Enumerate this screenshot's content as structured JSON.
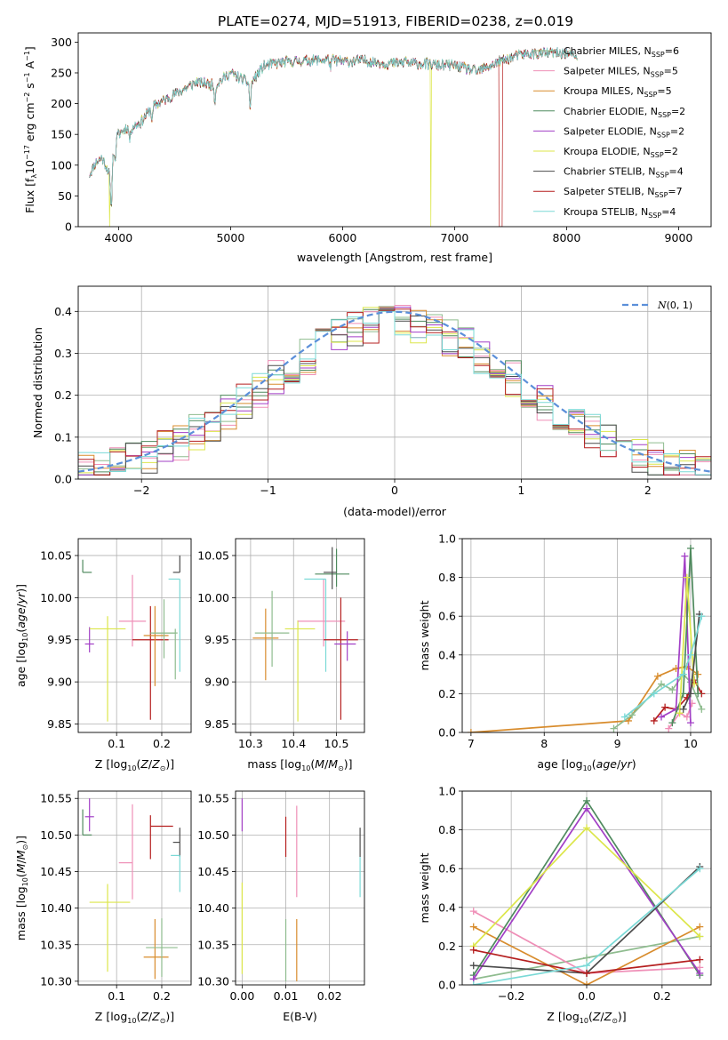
{
  "title": "PLATE=0274, MJD=51913, FIBERID=0238, z=0.019",
  "series": [
    {
      "name": "Chabrier MILES",
      "n": "6",
      "color": "#8fbc8f"
    },
    {
      "name": "Salpeter MILES",
      "n": "5",
      "color": "#ef8fb7"
    },
    {
      "name": "Kroupa MILES",
      "n": "5",
      "color": "#d88c2d"
    },
    {
      "name": "Chabrier ELODIE",
      "n": "2",
      "color": "#4f8a5e"
    },
    {
      "name": "Salpeter ELODIE",
      "n": "2",
      "color": "#a23fc6"
    },
    {
      "name": "Kroupa ELODIE",
      "n": "2",
      "color": "#dce64a"
    },
    {
      "name": "Chabrier STELIB",
      "n": "4",
      "color": "#4c4c4c"
    },
    {
      "name": "Salpeter STELIB",
      "n": "7",
      "color": "#b51f1f"
    },
    {
      "name": "Kroupa STELIB",
      "n": "4",
      "color": "#7ad9d6"
    }
  ],
  "chart_data": [
    {
      "id": "spectrum",
      "type": "line",
      "xlabel": "wavelength [Angstrom, rest frame]",
      "ylabel": "Flux [f",
      "xlim": [
        3640,
        9290
      ],
      "ylim": [
        0,
        315
      ],
      "xticks": [
        4000,
        5000,
        6000,
        7000,
        8000,
        9000
      ],
      "yticks": [
        0,
        50,
        100,
        150,
        200,
        250,
        300
      ],
      "knots": {
        "x": [
          3740,
          3800,
          3850,
          3900,
          3935,
          3960,
          4000,
          4060,
          4100,
          4200,
          4300,
          4500,
          4700,
          4861,
          5000,
          5175,
          5300,
          5500,
          5700,
          5893,
          6000,
          6200,
          6400,
          6563,
          6700,
          6900,
          7000,
          7200,
          7400,
          7600,
          7800,
          8000,
          8100
        ],
        "y": [
          85,
          105,
          112,
          95,
          75,
          140,
          150,
          160,
          160,
          170,
          195,
          215,
          235,
          230,
          250,
          232,
          262,
          268,
          270,
          272,
          268,
          270,
          265,
          266,
          265,
          262,
          262,
          252,
          268,
          280,
          282,
          282,
          276
        ]
      },
      "drops": [
        {
          "series": "Kroupa ELODIE",
          "x": [
            3920,
            6790
          ]
        },
        {
          "series": "Salpeter STELIB",
          "x": [
            7420
          ]
        }
      ]
    },
    {
      "id": "residuals",
      "type": "histogram",
      "xlabel": "(data-model)/error",
      "ylabel": "Normed distribution",
      "xlim": [
        -2.5,
        2.5
      ],
      "ylim": [
        0,
        0.46
      ],
      "xticks": [
        -2,
        -1,
        0,
        1,
        2
      ],
      "yticks": [
        0.0,
        0.1,
        0.2,
        0.3,
        0.4
      ],
      "bin_width": 0.125,
      "legend": "$\\mathcal{N}(0,1)$",
      "normal_mean": 0,
      "normal_sigma": 1
    },
    {
      "id": "age_Z",
      "type": "errorbar",
      "xlabel": "Z [log",
      "ylabel": "age  [log",
      "xlim": [
        0.015,
        0.265
      ],
      "ylim": [
        9.84,
        10.07
      ],
      "xticks": [
        0.1,
        0.2
      ],
      "yticks": [
        9.85,
        9.9,
        9.95,
        10.0,
        10.05
      ],
      "points": [
        {
          "x": 0.025,
          "xe": [
            0,
            0.02
          ],
          "y": 10.03,
          "ye": [
            0,
            0.015
          ],
          "s": 3
        },
        {
          "x": 0.04,
          "xe": [
            0.01,
            0.01
          ],
          "y": 9.945,
          "ye": [
            0.01,
            0.02
          ],
          "s": 4
        },
        {
          "x": 0.08,
          "xe": [
            0.04,
            0.04
          ],
          "y": 9.963,
          "ye": [
            0.11,
            0.015
          ],
          "s": 5
        },
        {
          "x": 0.135,
          "xe": [
            0.03,
            0.03
          ],
          "y": 9.972,
          "ye": [
            0.03,
            0.055
          ],
          "s": 1
        },
        {
          "x": 0.175,
          "xe": [
            0.04,
            0.04
          ],
          "y": 9.95,
          "ye": [
            0.095,
            0.04
          ],
          "s": 7
        },
        {
          "x": 0.185,
          "xe": [
            0.025,
            0.03
          ],
          "y": 9.955,
          "ye": [
            0.06,
            0.035
          ],
          "s": 2
        },
        {
          "x": 0.205,
          "xe": [
            0.03,
            0.03
          ],
          "y": 9.958,
          "ye": [
            0.03,
            0.04
          ],
          "s": 0
        },
        {
          "x": 0.24,
          "xe": [
            0.015,
            0.0
          ],
          "y": 10.03,
          "ye": [
            0,
            0.02
          ],
          "s": 6
        },
        {
          "x": 0.24,
          "xe": [
            0.025,
            0.0
          ],
          "y": 10.022,
          "ye": [
            0.11,
            0.0
          ],
          "s": 8
        },
        {
          "x": 0.23,
          "xe": [
            0.05,
            0.0
          ],
          "y": 9.958,
          "ye": [
            0.055,
            0.005
          ],
          "s": 0
        }
      ]
    },
    {
      "id": "age_mass",
      "type": "errorbar",
      "xlabel": "mass [log",
      "ylabel": "",
      "xlim": [
        10.265,
        10.565
      ],
      "ylim": [
        9.84,
        10.07
      ],
      "xticks": [
        10.3,
        10.4,
        10.5
      ],
      "yticks": [
        9.85,
        9.9,
        9.95,
        10.0,
        10.05
      ],
      "points": [
        {
          "x": 10.335,
          "xe": [
            0.03,
            0.03
          ],
          "y": 9.952,
          "ye": [
            0.05,
            0.035
          ],
          "s": 2
        },
        {
          "x": 10.35,
          "xe": [
            0.04,
            0.04
          ],
          "y": 9.958,
          "ye": [
            0.04,
            0.05
          ],
          "s": 0
        },
        {
          "x": 10.41,
          "xe": [
            0.03,
            0.04
          ],
          "y": 9.963,
          "ye": [
            0.11,
            0.01
          ],
          "s": 5
        },
        {
          "x": 10.47,
          "xe": [
            0.06,
            0.05
          ],
          "y": 9.972,
          "ye": [
            0.03,
            0.05
          ],
          "s": 1
        },
        {
          "x": 10.475,
          "xe": [
            0.05,
            0.0
          ],
          "y": 10.022,
          "ye": [
            0.11,
            0.0
          ],
          "s": 8
        },
        {
          "x": 10.51,
          "xe": [
            0.04,
            0.04
          ],
          "y": 9.95,
          "ye": [
            0.095,
            0.05
          ],
          "s": 7
        },
        {
          "x": 10.525,
          "xe": [
            0.03,
            0.02
          ],
          "y": 9.945,
          "ye": [
            0.02,
            0.015
          ],
          "s": 4
        },
        {
          "x": 10.5,
          "xe": [
            0.05,
            0.03
          ],
          "y": 10.028,
          "ye": [
            0.015,
            0.03
          ],
          "s": 3
        },
        {
          "x": 10.49,
          "xe": [
            0.02,
            0.01
          ],
          "y": 10.03,
          "ye": [
            0.02,
            0.03
          ],
          "s": 6
        }
      ]
    },
    {
      "id": "weight_age",
      "type": "line",
      "xlabel": "age  [log",
      "ylabel": "mass weight",
      "xlim": [
        6.88,
        10.28
      ],
      "ylim": [
        0,
        1.0
      ],
      "xticks": [
        7,
        8,
        9,
        10
      ],
      "yticks": [
        0.0,
        0.2,
        0.4,
        0.6,
        0.8,
        1.0
      ],
      "lines": [
        {
          "s": 2,
          "x": [
            7.0,
            9.15,
            9.55,
            9.8,
            9.95,
            10.1
          ],
          "y": [
            0.0,
            0.06,
            0.29,
            0.33,
            0.34,
            0.3
          ]
        },
        {
          "s": 0,
          "x": [
            8.95,
            9.2,
            9.6,
            9.75,
            9.9,
            10.0,
            10.15
          ],
          "y": [
            0.02,
            0.09,
            0.25,
            0.22,
            0.3,
            0.26,
            0.12
          ]
        },
        {
          "s": 7,
          "x": [
            9.5,
            9.65,
            9.8,
            9.95,
            10.05,
            10.15
          ],
          "y": [
            0.06,
            0.13,
            0.12,
            0.18,
            0.27,
            0.2
          ]
        },
        {
          "s": 1,
          "x": [
            9.7,
            9.85,
            9.95,
            10.02
          ],
          "y": [
            0.02,
            0.1,
            0.08,
            0.15
          ]
        },
        {
          "s": 4,
          "x": [
            9.6,
            9.8,
            9.92,
            10.0
          ],
          "y": [
            0.08,
            0.12,
            0.91,
            0.05
          ]
        },
        {
          "s": 3,
          "x": [
            9.75,
            9.9,
            10.0,
            10.1
          ],
          "y": [
            0.05,
            0.2,
            0.95,
            0.2
          ]
        },
        {
          "s": 5,
          "x": [
            9.85,
            9.95,
            10.05
          ],
          "y": [
            0.1,
            0.8,
            0.25
          ]
        },
        {
          "s": 6,
          "x": [
            9.9,
            10.0,
            10.12
          ],
          "y": [
            0.12,
            0.2,
            0.61
          ]
        },
        {
          "s": 8,
          "x": [
            9.1,
            9.5,
            9.9,
            10.0,
            10.15
          ],
          "y": [
            0.08,
            0.2,
            0.3,
            0.4,
            0.6
          ]
        }
      ]
    },
    {
      "id": "mass_Z",
      "type": "errorbar",
      "xlabel": "Z [log",
      "ylabel": "mass [log",
      "xlim": [
        0.015,
        0.265
      ],
      "ylim": [
        10.295,
        10.56
      ],
      "xticks": [
        0.1,
        0.2
      ],
      "yticks": [
        10.3,
        10.35,
        10.4,
        10.45,
        10.5,
        10.55
      ],
      "points": [
        {
          "x": 0.025,
          "xe": [
            0,
            0.02
          ],
          "y": 10.5,
          "ye": [
            0,
            0.035
          ],
          "s": 3
        },
        {
          "x": 0.04,
          "xe": [
            0.01,
            0.01
          ],
          "y": 10.525,
          "ye": [
            0.02,
            0.025
          ],
          "s": 4
        },
        {
          "x": 0.08,
          "xe": [
            0.04,
            0.05
          ],
          "y": 10.408,
          "ye": [
            0.095,
            0.025
          ],
          "s": 5
        },
        {
          "x": 0.135,
          "xe": [
            0.03,
            0.0
          ],
          "y": 10.462,
          "ye": [
            0.05,
            0.08
          ],
          "s": 1
        },
        {
          "x": 0.175,
          "xe": [
            0.0,
            0.05
          ],
          "y": 10.512,
          "ye": [
            0.045,
            0.015
          ],
          "s": 7
        },
        {
          "x": 0.185,
          "xe": [
            0.025,
            0.03
          ],
          "y": 10.333,
          "ye": [
            0.03,
            0.052
          ],
          "s": 2
        },
        {
          "x": 0.2,
          "xe": [
            0.035,
            0.035
          ],
          "y": 10.346,
          "ye": [
            0.04,
            0.04
          ],
          "s": 0
        },
        {
          "x": 0.24,
          "xe": [
            0.015,
            0.0
          ],
          "y": 10.49,
          "ye": [
            0.02,
            0.02
          ],
          "s": 6
        },
        {
          "x": 0.24,
          "xe": [
            0.02,
            0.0
          ],
          "y": 10.472,
          "ye": [
            0.05,
            0.0
          ],
          "s": 8
        }
      ]
    },
    {
      "id": "mass_EBV",
      "type": "errorbar",
      "xlabel": "E(B-V)",
      "ylabel": "",
      "xlim": [
        -0.0015,
        0.028
      ],
      "ylim": [
        10.295,
        10.56
      ],
      "xticks": [
        0.0,
        0.01,
        0.02
      ],
      "yticks": [
        10.3,
        10.35,
        10.4,
        10.45,
        10.5,
        10.55
      ],
      "points": [
        {
          "x": 0.0,
          "xe": [
            0,
            0
          ],
          "y": 10.525,
          "ye": [
            0.02,
            0.025
          ],
          "s": 4
        },
        {
          "x": 0.0,
          "xe": [
            0,
            0
          ],
          "y": 10.38,
          "ye": [
            0.07,
            0.055
          ],
          "s": 5
        },
        {
          "x": 0.01,
          "xe": [
            0,
            0
          ],
          "y": 10.35,
          "ye": [
            0.05,
            0.035
          ],
          "s": 0
        },
        {
          "x": 0.01,
          "xe": [
            0,
            0
          ],
          "y": 10.505,
          "ye": [
            0.035,
            0.02
          ],
          "s": 7
        },
        {
          "x": 0.0125,
          "xe": [
            0,
            0
          ],
          "y": 10.345,
          "ye": [
            0.045,
            0.04
          ],
          "s": 2
        },
        {
          "x": 0.0125,
          "xe": [
            0,
            0
          ],
          "y": 10.48,
          "ye": [
            0.065,
            0.06
          ],
          "s": 1
        },
        {
          "x": 0.027,
          "xe": [
            0,
            0
          ],
          "y": 10.49,
          "ye": [
            0.02,
            0.02
          ],
          "s": 6
        },
        {
          "x": 0.027,
          "xe": [
            0,
            0
          ],
          "y": 10.45,
          "ye": [
            0.035,
            0.02
          ],
          "s": 8
        }
      ]
    },
    {
      "id": "weight_Z",
      "type": "line",
      "xlabel": "Z [log",
      "ylabel": "mass weight",
      "xlim": [
        -0.33,
        0.33
      ],
      "ylim": [
        0,
        1.0
      ],
      "xticks": [
        -0.2,
        0.0,
        0.2
      ],
      "yticks": [
        0.0,
        0.2,
        0.4,
        0.6,
        0.8,
        1.0
      ],
      "lines": [
        {
          "s": 0,
          "x": [
            -0.3,
            0.0,
            0.3
          ],
          "y": [
            0.03,
            0.14,
            0.25
          ]
        },
        {
          "s": 1,
          "x": [
            -0.3,
            0.0,
            0.3
          ],
          "y": [
            0.38,
            0.06,
            0.09
          ]
        },
        {
          "s": 2,
          "x": [
            -0.3,
            0.0,
            0.3
          ],
          "y": [
            0.3,
            0.0,
            0.3
          ]
        },
        {
          "s": 3,
          "x": [
            -0.3,
            0.0,
            0.3
          ],
          "y": [
            0.05,
            0.95,
            0.05
          ]
        },
        {
          "s": 4,
          "x": [
            -0.3,
            0.0,
            0.3
          ],
          "y": [
            0.03,
            0.91,
            0.06
          ]
        },
        {
          "s": 5,
          "x": [
            -0.3,
            0.0,
            0.3
          ],
          "y": [
            0.2,
            0.81,
            0.25
          ]
        },
        {
          "s": 6,
          "x": [
            -0.3,
            0.0,
            0.3
          ],
          "y": [
            0.1,
            0.06,
            0.61
          ]
        },
        {
          "s": 7,
          "x": [
            -0.3,
            0.0,
            0.3
          ],
          "y": [
            0.18,
            0.06,
            0.13
          ]
        },
        {
          "s": 8,
          "x": [
            -0.3,
            0.0,
            0.3
          ],
          "y": [
            0.0,
            0.1,
            0.6
          ]
        }
      ]
    }
  ]
}
